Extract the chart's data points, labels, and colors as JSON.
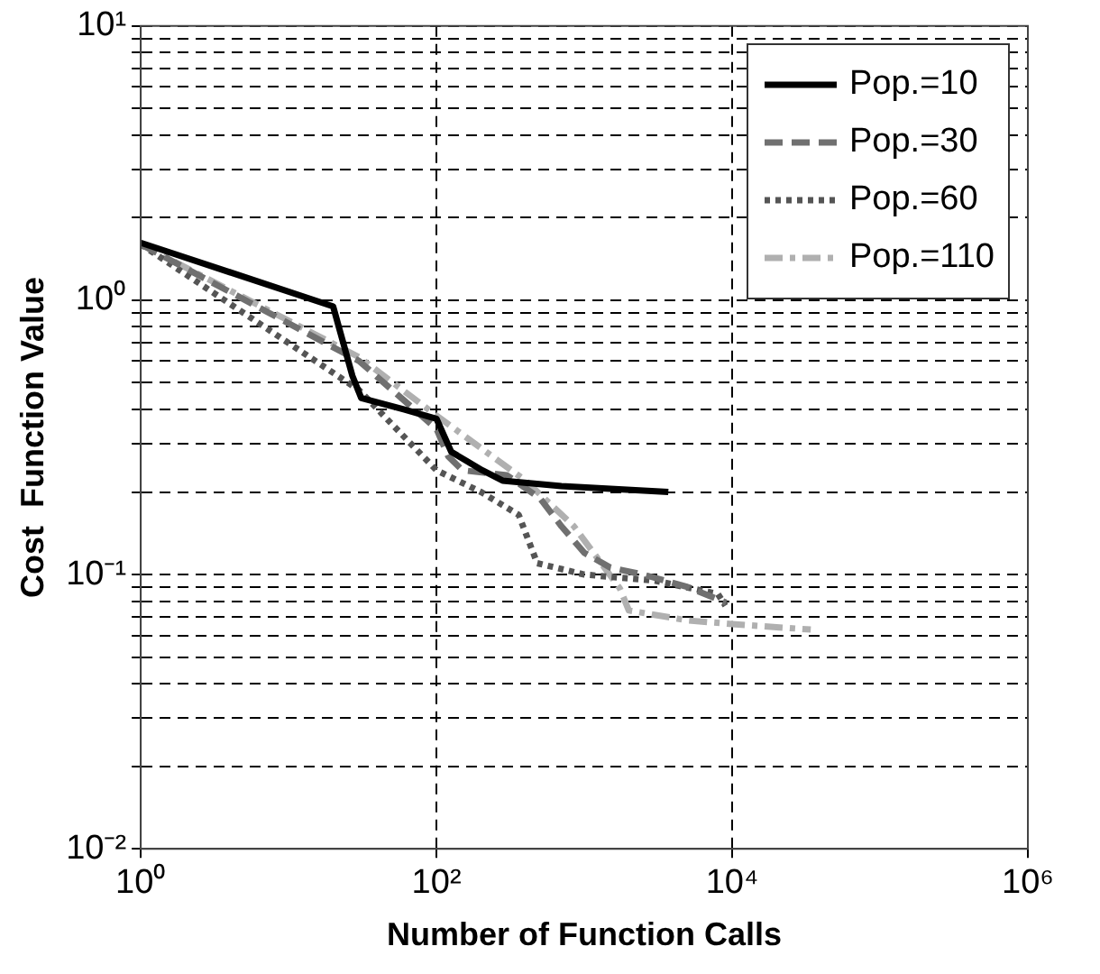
{
  "chart_data": {
    "type": "line",
    "xlabel": "Number of Function Calls",
    "ylabel": "Cost  Function Value",
    "log": "xy",
    "xlim": [
      1,
      1000000
    ],
    "xticks": [
      {
        "value": 1,
        "label": "10⁰"
      },
      {
        "value": 100,
        "label": "10²"
      },
      {
        "value": 10000,
        "label": "10⁴"
      },
      {
        "value": 1000000,
        "label": "10⁶"
      }
    ],
    "ylim": [
      0.01,
      10
    ],
    "yticks": [
      {
        "value": 0.01,
        "label": "10⁻²"
      },
      {
        "value": 0.02,
        "label": null
      },
      {
        "value": 0.03,
        "label": null
      },
      {
        "value": 0.04,
        "label": null
      },
      {
        "value": 0.05,
        "label": null
      },
      {
        "value": 0.06,
        "label": null
      },
      {
        "value": 0.07,
        "label": null
      },
      {
        "value": 0.08,
        "label": null
      },
      {
        "value": 0.09,
        "label": null
      },
      {
        "value": 0.1,
        "label": "10⁻¹"
      },
      {
        "value": 0.2,
        "label": null
      },
      {
        "value": 0.3,
        "label": null
      },
      {
        "value": 0.4,
        "label": null
      },
      {
        "value": 0.5,
        "label": null
      },
      {
        "value": 0.6,
        "label": null
      },
      {
        "value": 0.7,
        "label": null
      },
      {
        "value": 0.8,
        "label": null
      },
      {
        "value": 0.9,
        "label": null
      },
      {
        "value": 1,
        "label": "10⁰"
      },
      {
        "value": 2,
        "label": null
      },
      {
        "value": 3,
        "label": null
      },
      {
        "value": 4,
        "label": null
      },
      {
        "value": 5,
        "label": null
      },
      {
        "value": 6,
        "label": null
      },
      {
        "value": 7,
        "label": null
      },
      {
        "value": 8,
        "label": null
      },
      {
        "value": 9,
        "label": null
      },
      {
        "value": 10,
        "label": "10¹"
      }
    ],
    "grid": true,
    "legend": "top right",
    "series": [
      {
        "name": "Pop.=10",
        "color": "#000000",
        "line_style": "solid",
        "x": [
          1,
          20,
          27,
          31,
          60,
          100,
          126,
          204,
          280,
          700,
          3700
        ],
        "values": [
          1.62,
          0.95,
          0.53,
          0.44,
          0.4,
          0.37,
          0.28,
          0.24,
          0.22,
          0.21,
          0.2
        ]
      },
      {
        "name": "Pop.=30",
        "color": "#707070",
        "line_style": "dashed",
        "x": [
          1,
          30,
          100,
          120,
          150,
          300,
          500,
          700,
          1000,
          1500,
          2500,
          5000,
          9100
        ],
        "values": [
          1.6,
          0.6,
          0.34,
          0.27,
          0.24,
          0.23,
          0.19,
          0.15,
          0.12,
          0.106,
          0.1,
          0.09,
          0.079
        ]
      },
      {
        "name": "Pop.=60",
        "color": "#555555",
        "line_style": "dotted",
        "x": [
          1,
          30,
          100,
          200,
          360,
          480,
          1000,
          3000,
          8000,
          9000
        ],
        "values": [
          1.6,
          0.47,
          0.24,
          0.2,
          0.165,
          0.11,
          0.1,
          0.095,
          0.085,
          0.077
        ]
      },
      {
        "name": "Pop.=110",
        "color": "#b0b0b0",
        "line_style": "dashdot",
        "x": [
          1,
          30,
          100,
          400,
          850,
          1740,
          2000,
          5000,
          10000,
          34000
        ],
        "values": [
          1.6,
          0.62,
          0.38,
          0.22,
          0.15,
          0.089,
          0.074,
          0.068,
          0.066,
          0.063
        ]
      }
    ]
  }
}
